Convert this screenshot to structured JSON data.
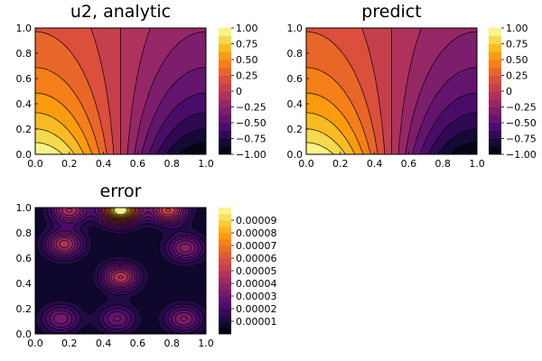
{
  "chart_data": [
    {
      "type": "heatmap",
      "subtype": "filled-contour",
      "title": "u2, analytic",
      "colormap": "inferno",
      "xlim": [
        0.0,
        1.0
      ],
      "ylim": [
        0.0,
        1.0
      ],
      "x_ticks": [
        "0.0",
        "0.2",
        "0.4",
        "0.6",
        "0.8",
        "1.0"
      ],
      "y_ticks": [
        "0.0",
        "0.2",
        "0.4",
        "0.6",
        "0.8",
        "1.0"
      ],
      "colorbar": {
        "range": [
          -1.0,
          1.0
        ],
        "levels": 16,
        "ticks": [
          "1.00",
          "0.75",
          "0.50",
          "0.25",
          "0",
          "−0.25",
          "−0.50",
          "−0.75",
          "−1.00"
        ],
        "tick_values": [
          1.0,
          0.75,
          0.5,
          0.25,
          0,
          -0.25,
          -0.5,
          -0.75,
          -1.0
        ]
      },
      "field": "u2"
    },
    {
      "type": "heatmap",
      "subtype": "filled-contour",
      "title": "predict",
      "colormap": "inferno",
      "xlim": [
        0.0,
        1.0
      ],
      "ylim": [
        0.0,
        1.0
      ],
      "x_ticks": [
        "0.0",
        "0.2",
        "0.4",
        "0.6",
        "0.8",
        "1.0"
      ],
      "y_ticks": [
        "0.0",
        "0.2",
        "0.4",
        "0.6",
        "0.8",
        "1.0"
      ],
      "colorbar": {
        "range": [
          -1.0,
          1.0
        ],
        "levels": 16,
        "ticks": [
          "1.00",
          "0.75",
          "0.50",
          "0.25",
          "0",
          "−0.25",
          "−0.50",
          "−0.75",
          "−1.00"
        ],
        "tick_values": [
          1.0,
          0.75,
          0.5,
          0.25,
          0,
          -0.25,
          -0.5,
          -0.75,
          -1.0
        ]
      },
      "field": "u2"
    },
    {
      "type": "heatmap",
      "subtype": "filled-contour",
      "title": "error",
      "colormap": "inferno",
      "xlim": [
        0.0,
        1.0
      ],
      "ylim": [
        0.0,
        1.0
      ],
      "x_ticks": [
        "0.0",
        "0.2",
        "0.4",
        "0.6",
        "0.8",
        "1.0"
      ],
      "y_ticks": [
        "0.0",
        "0.2",
        "0.4",
        "0.6",
        "0.8",
        "1.0"
      ],
      "colorbar": {
        "range": [
          0.0,
          0.0001
        ],
        "levels": 20,
        "ticks": [
          "0.00009",
          "0.00008",
          "0.00007",
          "0.00006",
          "0.00005",
          "0.00004",
          "0.00003",
          "0.00002",
          "0.00001"
        ],
        "tick_values": [
          9e-05,
          8e-05,
          7e-05,
          6e-05,
          5e-05,
          4e-05,
          3e-05,
          2e-05,
          1e-05
        ]
      },
      "field": "error",
      "peaks": [
        {
          "x": 0.5,
          "y": 0.98,
          "value": 0.0001
        },
        {
          "x": 0.5,
          "y": 0.45,
          "value": 4.5e-05
        },
        {
          "x": 0.17,
          "y": 0.71,
          "value": 4.2e-05
        },
        {
          "x": 0.88,
          "y": 0.68,
          "value": 3.2e-05
        },
        {
          "x": 0.87,
          "y": 0.12,
          "value": 3e-05
        },
        {
          "x": 0.15,
          "y": 0.12,
          "value": 2.8e-05
        },
        {
          "x": 0.48,
          "y": 0.12,
          "value": 2.5e-05
        },
        {
          "x": 0.78,
          "y": 0.98,
          "value": 5e-05
        },
        {
          "x": 0.2,
          "y": 0.98,
          "value": 4e-05
        }
      ]
    }
  ]
}
